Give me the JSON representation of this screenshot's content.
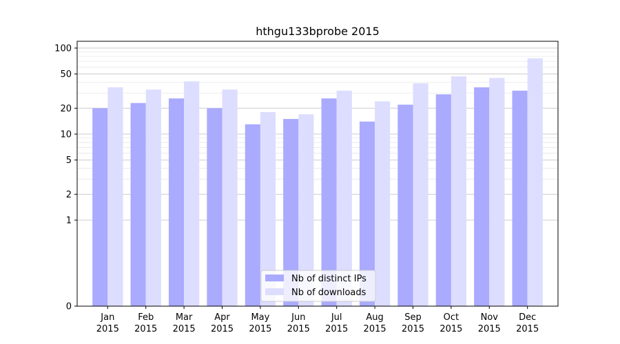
{
  "chart_data": {
    "type": "bar",
    "title": "hthgu133bprobe 2015",
    "xlabel": "",
    "ylabel": "",
    "categories": [
      [
        "Jan",
        "2015"
      ],
      [
        "Feb",
        "2015"
      ],
      [
        "Mar",
        "2015"
      ],
      [
        "Apr",
        "2015"
      ],
      [
        "May",
        "2015"
      ],
      [
        "Jun",
        "2015"
      ],
      [
        "Jul",
        "2015"
      ],
      [
        "Aug",
        "2015"
      ],
      [
        "Sep",
        "2015"
      ],
      [
        "Oct",
        "2015"
      ],
      [
        "Nov",
        "2015"
      ],
      [
        "Dec",
        "2015"
      ]
    ],
    "series": [
      {
        "name": "Nb of distinct IPs",
        "color": "#aaaaff",
        "values": [
          20,
          23,
          26,
          20,
          13,
          15,
          26,
          14,
          22,
          29,
          35,
          32
        ]
      },
      {
        "name": "Nb of downloads",
        "color": "#ddddff",
        "values": [
          35,
          33,
          41,
          33,
          18,
          17,
          32,
          24,
          39,
          47,
          45,
          76
        ]
      }
    ],
    "y_scale": "symlog",
    "ylim": [
      0,
      120
    ],
    "y_ticks": [
      0,
      1,
      2,
      5,
      10,
      20,
      50,
      100
    ],
    "grid": true,
    "legend_position": "bottom-center"
  }
}
